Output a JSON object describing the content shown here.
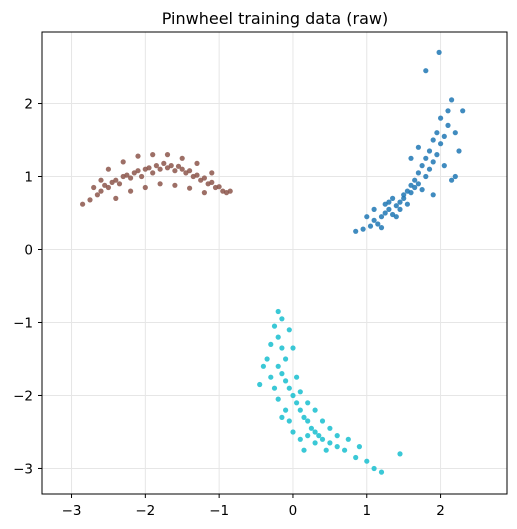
{
  "chart_data": {
    "type": "scatter",
    "title": "Pinwheel training data (raw)",
    "xlabel": "",
    "ylabel": "",
    "xlim": [
      -3.4,
      2.9
    ],
    "ylim": [
      -3.35,
      2.98
    ],
    "x_ticks": [
      -3,
      -2,
      -1,
      0,
      1,
      2
    ],
    "y_ticks": [
      -3,
      -2,
      -1,
      0,
      1,
      2
    ],
    "x_tick_labels": [
      "−3",
      "−2",
      "−1",
      "0",
      "1",
      "2"
    ],
    "y_tick_labels": [
      "−3",
      "−2",
      "−1",
      "0",
      "1",
      "2"
    ],
    "grid": true,
    "legend": "none",
    "series": [
      {
        "color": "#8c564b",
        "points": [
          [
            -2.85,
            0.62
          ],
          [
            -2.75,
            0.68
          ],
          [
            -2.65,
            0.75
          ],
          [
            -2.6,
            0.8
          ],
          [
            -2.55,
            0.88
          ],
          [
            -2.5,
            0.85
          ],
          [
            -2.45,
            0.92
          ],
          [
            -2.4,
            0.95
          ],
          [
            -2.35,
            0.9
          ],
          [
            -2.3,
            1.0
          ],
          [
            -2.25,
            1.02
          ],
          [
            -2.2,
            0.98
          ],
          [
            -2.15,
            1.05
          ],
          [
            -2.1,
            1.08
          ],
          [
            -2.05,
            1.0
          ],
          [
            -2.0,
            1.1
          ],
          [
            -1.95,
            1.12
          ],
          [
            -1.9,
            1.05
          ],
          [
            -1.85,
            1.15
          ],
          [
            -1.8,
            1.1
          ],
          [
            -1.75,
            1.18
          ],
          [
            -1.7,
            1.12
          ],
          [
            -1.65,
            1.15
          ],
          [
            -1.6,
            1.08
          ],
          [
            -1.55,
            1.14
          ],
          [
            -1.5,
            1.1
          ],
          [
            -1.45,
            1.05
          ],
          [
            -1.4,
            1.08
          ],
          [
            -1.35,
            1.0
          ],
          [
            -1.3,
            1.02
          ],
          [
            -1.25,
            0.95
          ],
          [
            -1.2,
            0.98
          ],
          [
            -1.15,
            0.9
          ],
          [
            -1.1,
            0.92
          ],
          [
            -1.05,
            0.85
          ],
          [
            -1.0,
            0.86
          ],
          [
            -0.95,
            0.8
          ],
          [
            -0.9,
            0.78
          ],
          [
            -0.85,
            0.8
          ],
          [
            -2.4,
            0.7
          ],
          [
            -2.2,
            0.8
          ],
          [
            -2.0,
            0.85
          ],
          [
            -1.8,
            0.9
          ],
          [
            -1.6,
            0.88
          ],
          [
            -1.4,
            0.84
          ],
          [
            -1.2,
            0.78
          ],
          [
            -2.3,
            1.2
          ],
          [
            -2.1,
            1.28
          ],
          [
            -1.9,
            1.3
          ],
          [
            -1.7,
            1.3
          ],
          [
            -1.5,
            1.25
          ],
          [
            -1.3,
            1.18
          ],
          [
            -2.6,
            0.95
          ],
          [
            -2.7,
            0.85
          ],
          [
            -2.5,
            1.1
          ],
          [
            -1.1,
            1.05
          ]
        ]
      },
      {
        "color": "#1f77b4",
        "points": [
          [
            0.85,
            0.25
          ],
          [
            0.95,
            0.28
          ],
          [
            1.05,
            0.32
          ],
          [
            1.1,
            0.4
          ],
          [
            1.15,
            0.35
          ],
          [
            1.2,
            0.45
          ],
          [
            1.25,
            0.5
          ],
          [
            1.3,
            0.55
          ],
          [
            1.35,
            0.48
          ],
          [
            1.4,
            0.6
          ],
          [
            1.45,
            0.65
          ],
          [
            1.5,
            0.7
          ],
          [
            1.55,
            0.62
          ],
          [
            1.6,
            0.78
          ],
          [
            1.65,
            0.85
          ],
          [
            1.7,
            0.9
          ],
          [
            1.75,
            0.82
          ],
          [
            1.8,
            1.0
          ],
          [
            1.85,
            1.1
          ],
          [
            1.9,
            1.2
          ],
          [
            1.95,
            1.3
          ],
          [
            2.0,
            1.45
          ],
          [
            2.05,
            1.55
          ],
          [
            2.1,
            1.7
          ],
          [
            2.1,
            1.9
          ],
          [
            2.15,
            2.05
          ],
          [
            2.0,
            1.8
          ],
          [
            1.95,
            1.6
          ],
          [
            1.9,
            1.5
          ],
          [
            1.85,
            1.35
          ],
          [
            1.8,
            1.25
          ],
          [
            1.75,
            1.15
          ],
          [
            1.7,
            1.05
          ],
          [
            1.65,
            0.95
          ],
          [
            1.6,
            0.88
          ],
          [
            1.55,
            0.8
          ],
          [
            1.5,
            0.75
          ],
          [
            1.45,
            0.55
          ],
          [
            1.4,
            0.45
          ],
          [
            1.3,
            0.65
          ],
          [
            1.35,
            0.7
          ],
          [
            1.25,
            0.62
          ],
          [
            1.2,
            0.3
          ],
          [
            1.0,
            0.45
          ],
          [
            1.1,
            0.55
          ],
          [
            2.2,
            1.6
          ],
          [
            2.25,
            1.35
          ],
          [
            2.2,
            1.0
          ],
          [
            2.05,
            1.15
          ],
          [
            2.15,
            0.95
          ],
          [
            1.9,
            0.75
          ],
          [
            1.8,
            2.45
          ],
          [
            1.98,
            2.7
          ],
          [
            1.7,
            1.4
          ],
          [
            1.6,
            1.25
          ],
          [
            2.3,
            1.9
          ]
        ]
      },
      {
        "color": "#17becf",
        "points": [
          [
            -0.2,
            -0.85
          ],
          [
            -0.15,
            -0.95
          ],
          [
            -0.25,
            -1.05
          ],
          [
            -0.2,
            -1.2
          ],
          [
            -0.15,
            -1.35
          ],
          [
            -0.1,
            -1.5
          ],
          [
            -0.2,
            -1.6
          ],
          [
            -0.15,
            -1.7
          ],
          [
            -0.1,
            -1.8
          ],
          [
            -0.05,
            -1.9
          ],
          [
            0.0,
            -2.0
          ],
          [
            0.05,
            -2.1
          ],
          [
            0.1,
            -2.2
          ],
          [
            0.15,
            -2.3
          ],
          [
            0.2,
            -2.35
          ],
          [
            0.25,
            -2.45
          ],
          [
            0.3,
            -2.5
          ],
          [
            0.35,
            -2.55
          ],
          [
            0.4,
            -2.6
          ],
          [
            0.5,
            -2.65
          ],
          [
            0.6,
            -2.7
          ],
          [
            0.7,
            -2.75
          ],
          [
            0.85,
            -2.85
          ],
          [
            1.0,
            -2.9
          ],
          [
            1.1,
            -3.0
          ],
          [
            1.2,
            -3.05
          ],
          [
            1.45,
            -2.8
          ],
          [
            -0.3,
            -1.3
          ],
          [
            -0.35,
            -1.5
          ],
          [
            -0.3,
            -1.75
          ],
          [
            -0.25,
            -1.9
          ],
          [
            -0.2,
            -2.05
          ],
          [
            -0.1,
            -2.2
          ],
          [
            -0.05,
            -2.35
          ],
          [
            0.0,
            -2.5
          ],
          [
            0.1,
            -2.6
          ],
          [
            0.2,
            -2.55
          ],
          [
            0.05,
            -1.75
          ],
          [
            0.1,
            -1.95
          ],
          [
            0.2,
            -2.1
          ],
          [
            0.3,
            -2.2
          ],
          [
            0.4,
            -2.35
          ],
          [
            0.5,
            -2.45
          ],
          [
            0.6,
            -2.55
          ],
          [
            0.45,
            -2.75
          ],
          [
            0.3,
            -2.65
          ],
          [
            -0.4,
            -1.6
          ],
          [
            -0.45,
            -1.85
          ],
          [
            -0.05,
            -1.1
          ],
          [
            0.0,
            -1.35
          ],
          [
            0.75,
            -2.6
          ],
          [
            0.9,
            -2.7
          ],
          [
            0.15,
            -2.75
          ],
          [
            -0.15,
            -2.3
          ]
        ]
      }
    ]
  }
}
